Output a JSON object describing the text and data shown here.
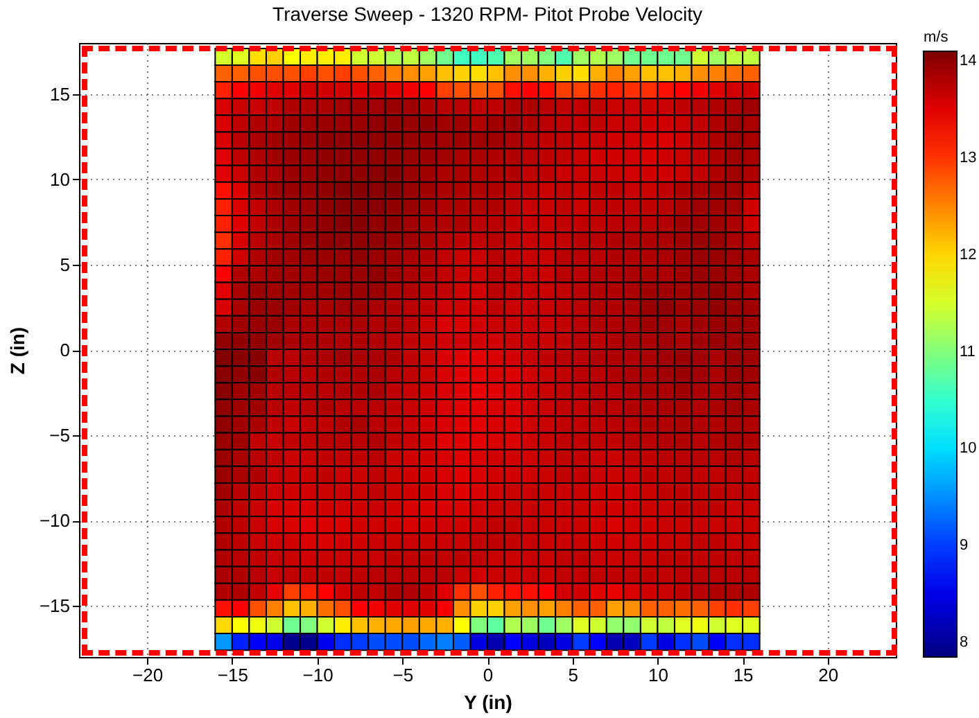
{
  "chart_data": {
    "type": "heatmap",
    "title": "Traverse Sweep - 1320 RPM- Pitot Probe Velocity",
    "xlabel": "Y (in)",
    "ylabel": "Z (in)",
    "clabel": "m/s",
    "xlim": [
      -24,
      24
    ],
    "xticks": [
      -20,
      -15,
      -10,
      -5,
      0,
      5,
      10,
      15,
      20
    ],
    "ylim": [
      -18,
      18
    ],
    "yticks": [
      -15,
      -10,
      -5,
      0,
      5,
      10,
      15
    ],
    "grid": true,
    "clim": [
      7.85,
      14.1
    ],
    "cticks": [
      8,
      9,
      10,
      11,
      12,
      13,
      14
    ],
    "x": [
      -15.5,
      -14.5,
      -13.5,
      -12.5,
      -11.5,
      -10.5,
      -9.5,
      -8.5,
      -7.5,
      -6.5,
      -5.5,
      -4.5,
      -3.5,
      -2.5,
      -1.5,
      -0.5,
      0.5,
      1.5,
      2.5,
      3.5,
      4.5,
      5.5,
      6.5,
      7.5,
      8.5,
      9.5,
      10.5,
      11.5,
      12.5,
      13.5,
      14.5,
      15.5
    ],
    "y": [
      17.19,
      16.21,
      15.23,
      14.25,
      13.27,
      12.29,
      11.31,
      10.33,
      9.35,
      8.37,
      7.39,
      6.41,
      5.43,
      4.45,
      3.47,
      2.49,
      1.51,
      0.53,
      -0.45,
      -1.43,
      -2.41,
      -3.39,
      -4.37,
      -5.35,
      -6.33,
      -7.31,
      -8.29,
      -9.27,
      -10.25,
      -11.23,
      -12.21,
      -13.19,
      -14.17,
      -15.15,
      -16.13,
      -17.11
    ],
    "cells": [
      [
        11.5,
        11.56,
        11.95,
        12.04,
        11.76,
        11.86,
        11.86,
        11.86,
        11.47,
        11.45,
        11.27,
        11.37,
        11.17,
        10.88,
        10.58,
        10.58,
        10.68,
        11.17,
        11.17,
        10.98,
        10.68,
        11.17,
        11.27,
        11.17,
        10.88,
        10.88,
        10.88,
        10.88,
        11.45,
        11.17,
        11.37,
        11.37
      ],
      [
        12.73,
        12.73,
        12.83,
        12.83,
        12.83,
        12.93,
        12.83,
        12.93,
        12.83,
        12.73,
        12.54,
        12.44,
        12.34,
        12.14,
        12.04,
        11.95,
        12.14,
        12.44,
        12.44,
        12.24,
        12.04,
        11.95,
        12.24,
        12.54,
        12.34,
        12.14,
        12.14,
        12.24,
        12.44,
        12.54,
        12.64,
        12.73
      ],
      [
        13.12,
        13.32,
        13.41,
        13.5,
        13.5,
        13.6,
        13.6,
        13.6,
        13.5,
        13.6,
        13.5,
        13.41,
        13.32,
        12.93,
        12.83,
        12.73,
        12.83,
        13.22,
        13.32,
        13.22,
        12.93,
        12.93,
        13.03,
        13.12,
        13.03,
        13.03,
        13.22,
        13.32,
        13.41,
        13.5,
        13.6,
        13.6
      ],
      [
        13.55,
        13.65,
        13.65,
        13.7,
        13.8,
        13.8,
        13.84,
        13.89,
        13.89,
        13.89,
        13.94,
        13.89,
        13.8,
        13.75,
        13.75,
        13.7,
        13.7,
        13.8,
        13.8,
        13.75,
        13.7,
        13.7,
        13.7,
        13.65,
        13.65,
        13.65,
        13.65,
        13.7,
        13.75,
        13.8,
        13.84,
        13.89
      ],
      [
        13.55,
        13.7,
        13.8,
        13.8,
        13.89,
        13.89,
        13.94,
        13.94,
        13.94,
        13.99,
        13.99,
        13.94,
        13.99,
        13.89,
        13.89,
        13.8,
        13.89,
        13.89,
        13.8,
        13.75,
        13.7,
        13.7,
        13.7,
        13.65,
        13.65,
        13.6,
        13.6,
        13.65,
        13.7,
        13.8,
        13.89,
        13.84
      ],
      [
        13.55,
        13.75,
        13.84,
        13.89,
        13.89,
        13.94,
        13.99,
        13.99,
        13.99,
        13.99,
        13.99,
        13.94,
        13.94,
        13.89,
        13.89,
        13.89,
        13.89,
        13.84,
        13.75,
        13.7,
        13.7,
        13.65,
        13.65,
        13.6,
        13.6,
        13.55,
        13.55,
        13.6,
        13.7,
        13.8,
        13.89,
        13.84
      ],
      [
        13.5,
        13.7,
        13.8,
        13.89,
        13.94,
        13.94,
        13.99,
        13.99,
        13.99,
        13.99,
        13.99,
        13.94,
        13.94,
        13.89,
        13.84,
        13.84,
        13.8,
        13.8,
        13.75,
        13.7,
        13.7,
        13.65,
        13.6,
        13.6,
        13.6,
        13.55,
        13.6,
        13.65,
        13.7,
        13.8,
        13.89,
        13.84
      ],
      [
        13.5,
        13.65,
        13.8,
        13.84,
        13.94,
        13.94,
        13.99,
        13.99,
        13.99,
        14.04,
        14.04,
        13.94,
        13.89,
        13.84,
        13.84,
        13.8,
        13.8,
        13.8,
        13.7,
        13.7,
        13.65,
        13.65,
        13.65,
        13.65,
        13.6,
        13.6,
        13.6,
        13.65,
        13.7,
        13.8,
        13.89,
        13.8
      ],
      [
        13.22,
        13.5,
        13.8,
        13.89,
        13.94,
        13.94,
        13.99,
        14.04,
        14.04,
        14.04,
        14.04,
        13.94,
        13.89,
        13.84,
        13.8,
        13.8,
        13.8,
        13.75,
        13.7,
        13.65,
        13.7,
        13.65,
        13.7,
        13.7,
        13.65,
        13.65,
        13.7,
        13.8,
        13.84,
        13.89,
        13.89,
        13.7
      ],
      [
        13.12,
        13.55,
        13.7,
        13.84,
        13.89,
        13.94,
        13.99,
        14.04,
        14.04,
        14.04,
        13.99,
        13.94,
        13.89,
        13.8,
        13.8,
        13.8,
        13.8,
        13.75,
        13.65,
        13.65,
        13.7,
        13.65,
        13.7,
        13.7,
        13.7,
        13.7,
        13.75,
        13.84,
        13.89,
        13.89,
        13.89,
        13.6
      ],
      [
        13.12,
        13.5,
        13.7,
        13.84,
        13.89,
        13.94,
        13.99,
        14.04,
        14.04,
        13.99,
        13.99,
        13.89,
        13.84,
        13.8,
        13.8,
        13.75,
        13.75,
        13.7,
        13.65,
        13.65,
        13.7,
        13.7,
        13.7,
        13.75,
        13.75,
        13.75,
        13.8,
        13.89,
        13.89,
        13.89,
        13.84,
        13.6
      ],
      [
        13.03,
        13.55,
        13.75,
        13.84,
        13.89,
        13.94,
        13.99,
        13.99,
        13.99,
        13.99,
        13.94,
        13.89,
        13.84,
        13.75,
        13.7,
        13.7,
        13.75,
        13.7,
        13.65,
        13.65,
        13.7,
        13.75,
        13.75,
        13.8,
        13.8,
        13.8,
        13.84,
        13.89,
        13.94,
        13.94,
        13.84,
        13.75
      ],
      [
        13.12,
        13.6,
        13.8,
        13.89,
        13.89,
        13.94,
        13.94,
        13.94,
        13.99,
        13.94,
        13.89,
        13.84,
        13.8,
        13.7,
        13.65,
        13.65,
        13.75,
        13.7,
        13.65,
        13.65,
        13.75,
        13.75,
        13.75,
        13.8,
        13.8,
        13.8,
        13.84,
        13.89,
        13.94,
        13.94,
        13.89,
        13.84
      ],
      [
        13.32,
        13.8,
        13.84,
        13.89,
        13.89,
        13.89,
        13.94,
        13.94,
        13.94,
        13.99,
        13.89,
        13.84,
        13.8,
        13.7,
        13.65,
        13.65,
        13.75,
        13.7,
        13.65,
        13.65,
        13.75,
        13.75,
        13.8,
        13.8,
        13.84,
        13.84,
        13.84,
        13.89,
        13.94,
        13.94,
        13.89,
        13.84
      ],
      [
        13.5,
        13.84,
        13.94,
        13.89,
        13.89,
        13.89,
        13.89,
        13.94,
        13.94,
        13.94,
        13.84,
        13.8,
        13.75,
        13.7,
        13.6,
        13.6,
        13.75,
        13.7,
        13.65,
        13.65,
        13.7,
        13.75,
        13.8,
        13.8,
        13.84,
        13.89,
        13.89,
        13.89,
        13.94,
        13.99,
        13.89,
        13.84
      ],
      [
        13.55,
        13.84,
        13.94,
        13.94,
        13.89,
        13.84,
        13.84,
        13.89,
        13.89,
        13.84,
        13.8,
        13.75,
        13.7,
        13.6,
        13.6,
        13.6,
        13.7,
        13.65,
        13.65,
        13.65,
        13.7,
        13.75,
        13.8,
        13.8,
        13.84,
        13.94,
        13.99,
        13.89,
        13.94,
        13.99,
        13.94,
        13.89
      ],
      [
        13.8,
        13.89,
        13.94,
        13.94,
        13.84,
        13.84,
        13.84,
        13.84,
        13.84,
        13.8,
        13.8,
        13.75,
        13.65,
        13.55,
        13.55,
        13.6,
        13.65,
        13.65,
        13.65,
        13.65,
        13.7,
        13.75,
        13.8,
        13.8,
        13.84,
        13.89,
        13.89,
        13.84,
        13.89,
        13.94,
        13.94,
        13.89
      ],
      [
        13.99,
        13.99,
        13.99,
        13.89,
        13.84,
        13.84,
        13.84,
        13.8,
        13.8,
        13.8,
        13.75,
        13.7,
        13.65,
        13.6,
        13.6,
        13.6,
        13.6,
        13.65,
        13.65,
        13.65,
        13.7,
        13.75,
        13.75,
        13.8,
        13.84,
        13.84,
        13.89,
        13.84,
        13.89,
        13.94,
        13.89,
        13.89
      ],
      [
        14.08,
        14.04,
        14.04,
        13.75,
        13.75,
        13.8,
        13.84,
        13.89,
        13.84,
        13.84,
        13.8,
        13.7,
        13.65,
        13.55,
        13.5,
        13.5,
        13.55,
        13.6,
        13.65,
        13.7,
        13.75,
        13.75,
        13.8,
        13.8,
        13.8,
        13.84,
        13.89,
        13.94,
        13.89,
        13.84,
        13.94,
        13.89
      ],
      [
        14.04,
        13.99,
        14.04,
        13.8,
        13.75,
        13.75,
        13.8,
        13.8,
        13.8,
        13.84,
        13.75,
        13.7,
        13.65,
        13.55,
        13.5,
        13.5,
        13.55,
        13.55,
        13.6,
        13.65,
        13.7,
        13.75,
        13.75,
        13.8,
        13.84,
        13.84,
        13.89,
        13.94,
        13.89,
        13.84,
        13.94,
        13.89
      ],
      [
        14.04,
        13.89,
        13.89,
        13.75,
        13.75,
        13.75,
        13.75,
        13.8,
        13.8,
        13.84,
        13.7,
        13.65,
        13.6,
        13.55,
        13.5,
        13.45,
        13.5,
        13.55,
        13.6,
        13.65,
        13.7,
        13.7,
        13.75,
        13.75,
        13.8,
        13.84,
        13.84,
        13.89,
        13.84,
        13.84,
        13.89,
        13.84
      ],
      [
        13.99,
        13.89,
        13.89,
        13.75,
        13.7,
        13.75,
        13.8,
        13.75,
        13.75,
        13.75,
        13.7,
        13.65,
        13.6,
        13.55,
        13.5,
        13.5,
        13.55,
        13.55,
        13.6,
        13.65,
        13.7,
        13.7,
        13.75,
        13.75,
        13.8,
        13.8,
        13.84,
        13.84,
        13.8,
        13.84,
        13.89,
        13.84
      ],
      [
        13.99,
        13.89,
        13.84,
        13.7,
        13.65,
        13.7,
        13.7,
        13.8,
        13.84,
        13.75,
        13.7,
        13.65,
        13.6,
        13.55,
        13.5,
        13.5,
        13.55,
        13.55,
        13.6,
        13.65,
        13.7,
        13.7,
        13.7,
        13.75,
        13.75,
        13.8,
        13.8,
        13.84,
        13.8,
        13.8,
        13.84,
        13.8
      ],
      [
        13.94,
        13.89,
        13.7,
        13.65,
        13.7,
        13.7,
        13.75,
        13.75,
        13.75,
        13.8,
        13.7,
        13.65,
        13.6,
        13.5,
        13.5,
        13.5,
        13.55,
        13.55,
        13.6,
        13.65,
        13.7,
        13.7,
        13.7,
        13.7,
        13.75,
        13.75,
        13.8,
        13.8,
        13.75,
        13.8,
        13.84,
        13.8
      ],
      [
        13.94,
        13.84,
        13.75,
        13.7,
        13.65,
        13.65,
        13.7,
        13.7,
        13.7,
        13.75,
        13.65,
        13.6,
        13.6,
        13.55,
        13.5,
        13.55,
        13.6,
        13.6,
        13.6,
        13.65,
        13.7,
        13.7,
        13.65,
        13.65,
        13.7,
        13.7,
        13.75,
        13.75,
        13.75,
        13.75,
        13.8,
        13.75
      ],
      [
        13.94,
        13.84,
        13.8,
        13.65,
        13.65,
        13.65,
        13.7,
        13.65,
        13.65,
        13.7,
        13.65,
        13.6,
        13.6,
        13.55,
        13.5,
        13.55,
        13.6,
        13.6,
        13.6,
        13.65,
        13.7,
        13.7,
        13.65,
        13.65,
        13.65,
        13.7,
        13.7,
        13.75,
        13.7,
        13.7,
        13.75,
        13.7
      ],
      [
        13.89,
        13.75,
        13.7,
        13.6,
        13.6,
        13.6,
        13.65,
        13.65,
        13.65,
        13.7,
        13.65,
        13.6,
        13.6,
        13.55,
        13.5,
        13.55,
        13.6,
        13.65,
        13.65,
        13.65,
        13.65,
        13.65,
        13.6,
        13.6,
        13.6,
        13.65,
        13.7,
        13.7,
        13.7,
        13.7,
        13.7,
        13.7
      ],
      [
        13.84,
        13.7,
        13.65,
        13.55,
        13.55,
        13.55,
        13.6,
        13.6,
        13.6,
        13.65,
        13.6,
        13.55,
        13.55,
        13.55,
        13.55,
        13.6,
        13.65,
        13.65,
        13.65,
        13.65,
        13.65,
        13.65,
        13.6,
        13.6,
        13.6,
        13.65,
        13.65,
        13.7,
        13.7,
        13.7,
        13.65,
        13.65
      ],
      [
        13.8,
        13.7,
        13.65,
        13.55,
        13.55,
        13.5,
        13.55,
        13.55,
        13.6,
        13.6,
        13.6,
        13.55,
        13.6,
        13.6,
        13.6,
        13.65,
        13.7,
        13.7,
        13.65,
        13.65,
        13.65,
        13.65,
        13.6,
        13.55,
        13.6,
        13.6,
        13.65,
        13.65,
        13.65,
        13.65,
        13.65,
        13.65
      ],
      [
        13.8,
        13.7,
        13.65,
        13.6,
        13.6,
        13.55,
        13.55,
        13.6,
        13.6,
        13.65,
        13.65,
        13.65,
        13.65,
        13.65,
        13.65,
        13.7,
        13.7,
        13.7,
        13.65,
        13.65,
        13.65,
        13.65,
        13.6,
        13.6,
        13.6,
        13.6,
        13.65,
        13.65,
        13.7,
        13.7,
        13.65,
        13.65
      ],
      [
        13.8,
        13.75,
        13.7,
        13.65,
        13.65,
        13.6,
        13.65,
        13.65,
        13.65,
        13.65,
        13.7,
        13.7,
        13.7,
        13.7,
        13.7,
        13.7,
        13.65,
        13.65,
        13.65,
        13.65,
        13.7,
        13.7,
        13.65,
        13.65,
        13.65,
        13.65,
        13.7,
        13.7,
        13.7,
        13.7,
        13.7,
        13.7
      ],
      [
        13.84,
        13.8,
        13.75,
        13.65,
        13.7,
        13.7,
        13.7,
        13.7,
        13.7,
        13.75,
        13.75,
        13.75,
        13.75,
        13.75,
        13.65,
        13.6,
        13.65,
        13.65,
        13.65,
        13.65,
        13.7,
        13.7,
        13.7,
        13.7,
        13.7,
        13.7,
        13.7,
        13.75,
        13.75,
        13.75,
        13.75,
        13.75
      ],
      [
        13.8,
        13.8,
        13.7,
        13.45,
        12.93,
        13.12,
        13.32,
        13.6,
        13.7,
        13.7,
        13.8,
        13.8,
        13.7,
        13.5,
        13.03,
        12.83,
        13.12,
        13.22,
        13.22,
        13.32,
        13.6,
        13.6,
        13.5,
        13.45,
        13.55,
        13.6,
        13.65,
        13.7,
        13.75,
        13.8,
        13.8,
        13.8
      ],
      [
        13.22,
        13.32,
        12.83,
        12.54,
        12.14,
        12.24,
        12.64,
        12.83,
        13.32,
        13.41,
        13.5,
        13.5,
        13.5,
        13.36,
        12.44,
        12.04,
        12.04,
        12.34,
        12.44,
        12.34,
        12.54,
        12.73,
        12.73,
        12.34,
        12.44,
        12.73,
        12.73,
        12.64,
        12.73,
        12.93,
        13.03,
        12.93
      ],
      [
        11.99,
        11.76,
        11.66,
        11.47,
        10.88,
        10.98,
        11.47,
        11.86,
        12.14,
        12.24,
        12.29,
        12.34,
        12.29,
        12.24,
        11.76,
        10.98,
        10.78,
        11.27,
        11.17,
        10.88,
        11.17,
        11.56,
        11.47,
        11.08,
        11.08,
        11.47,
        11.37,
        11.56,
        11.66,
        11.47,
        11.56,
        11.56
      ],
      [
        9.57,
        8.83,
        8.63,
        8.53,
        7.95,
        7.95,
        8.53,
        8.91,
        9.0,
        9.1,
        9.1,
        9.1,
        9.28,
        9.41,
        9.2,
        8.44,
        8.15,
        8.63,
        8.44,
        8.24,
        8.44,
        9.0,
        8.63,
        8.15,
        8.24,
        9.0,
        8.44,
        8.91,
        9.1,
        8.59,
        8.91,
        8.91
      ]
    ]
  }
}
